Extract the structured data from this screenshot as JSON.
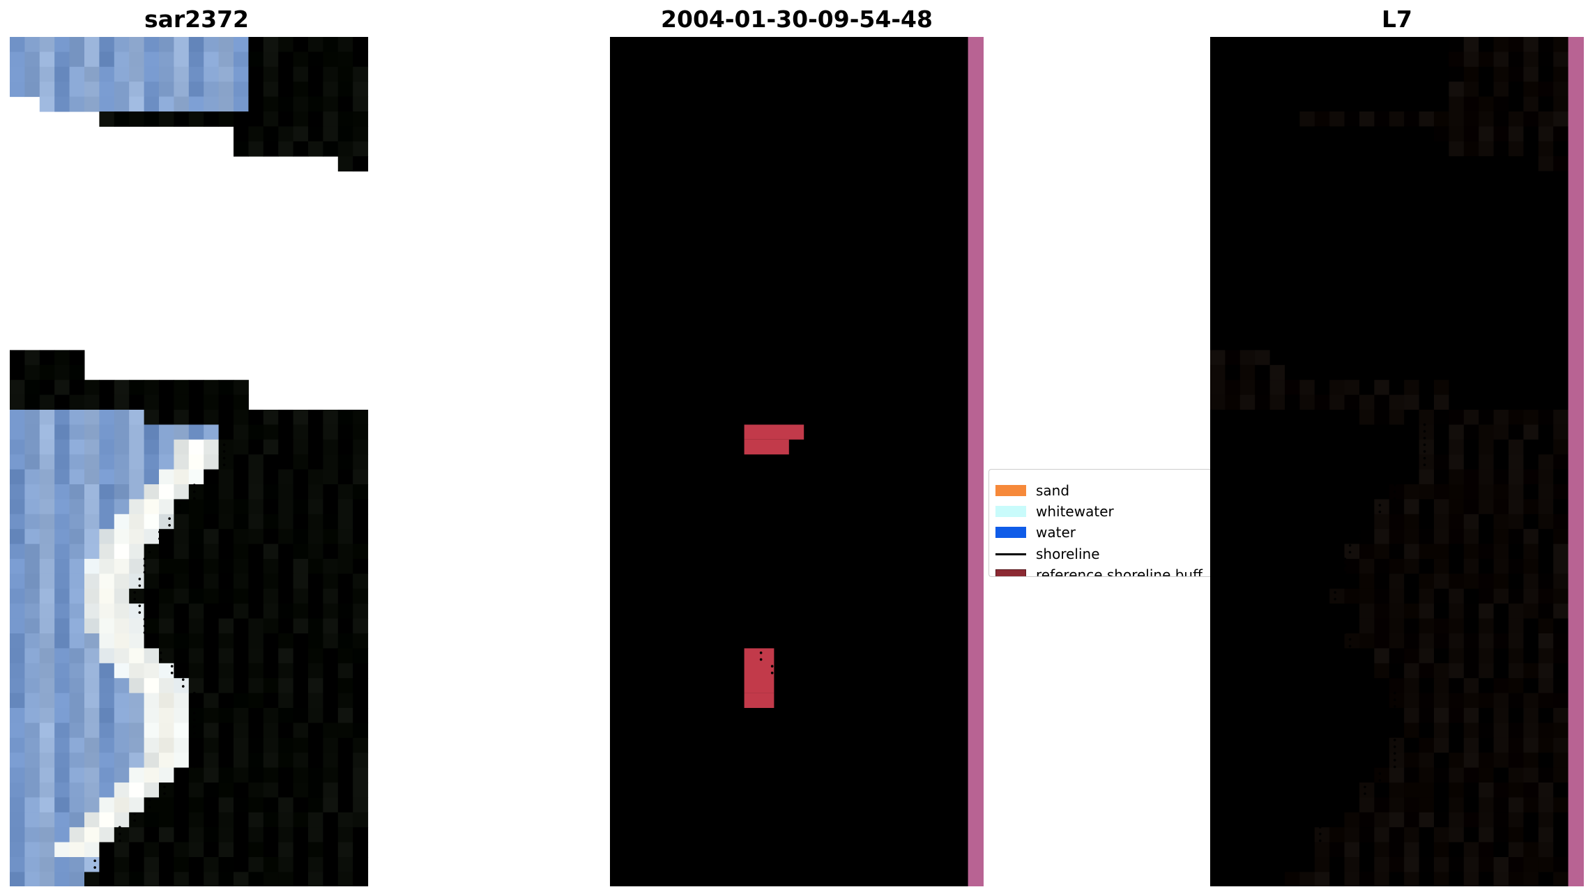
{
  "panels": [
    {
      "title": "sar2372"
    },
    {
      "title": "2004-01-30-09-54-48"
    },
    {
      "title": "L7"
    }
  ],
  "legend": {
    "items": [
      {
        "label": "sand",
        "color": "#f6893a",
        "kind": "patch"
      },
      {
        "label": "whitewater",
        "color": "#c9fbfb",
        "kind": "patch"
      },
      {
        "label": "water",
        "color": "#0f5ce8",
        "kind": "patch"
      },
      {
        "label": "shoreline",
        "color": "#000000",
        "kind": "line"
      },
      {
        "label": "reference shoreline buff",
        "color": "#8c2a33",
        "kind": "patch"
      }
    ]
  },
  "colors": {
    "rgb_water": "#2c5cb0",
    "rgb_sand": "#c4d4e4",
    "rgb_whitewater": "#f8f8f0",
    "class_water": "#54218f",
    "class_land": "#b86393",
    "class_sand": "#8a4482",
    "class_buffer": "#c23a4a",
    "index_land": "#c72d58",
    "index_water": "#8b3fa0",
    "nodata_overlay": "#b86393"
  }
}
